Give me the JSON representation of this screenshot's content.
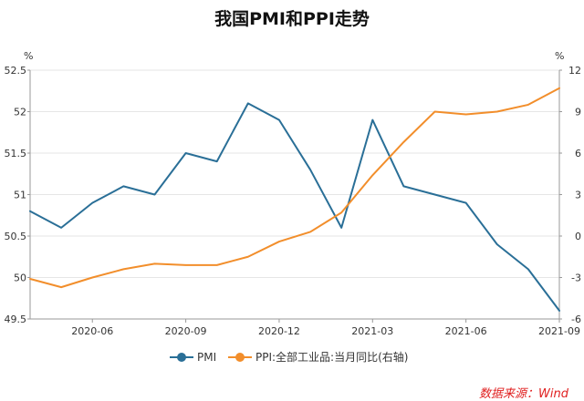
{
  "chart_data": {
    "type": "line",
    "title": "我国PMI和PPI走势",
    "source": "数据来源：Wind",
    "left_unit": "%",
    "right_unit": "%",
    "x_tick_labels": [
      "2020-06",
      "2020-09",
      "2020-12",
      "2021-03",
      "2021-06",
      "2021-09"
    ],
    "x": [
      "2020-04",
      "2020-05",
      "2020-06",
      "2020-07",
      "2020-08",
      "2020-09",
      "2020-10",
      "2020-11",
      "2020-12",
      "2021-01",
      "2021-02",
      "2021-03",
      "2021-04",
      "2021-05",
      "2021-06",
      "2021-07",
      "2021-08",
      "2021-09"
    ],
    "ylim_left": [
      49.5,
      52.5
    ],
    "yticks_left": [
      49.5,
      50,
      50.5,
      51,
      51.5,
      52,
      52.5
    ],
    "ylim_right": [
      -6,
      12
    ],
    "yticks_right": [
      -6,
      -3,
      0,
      3,
      6,
      9,
      12
    ],
    "series": [
      {
        "name": "PMI",
        "axis": "left",
        "color": "#2a6f97",
        "values": [
          50.8,
          50.6,
          50.9,
          51.1,
          51.0,
          51.5,
          51.4,
          52.1,
          51.9,
          51.3,
          50.6,
          51.9,
          51.1,
          51.0,
          50.9,
          50.4,
          50.1,
          49.6
        ]
      },
      {
        "name": "PPI:全部工业品:当月同比(右轴)",
        "axis": "right",
        "color": "#f28e2b",
        "values": [
          -3.1,
          -3.7,
          -3.0,
          -2.4,
          -2.0,
          -2.1,
          -2.1,
          -1.5,
          -0.4,
          0.3,
          1.7,
          4.4,
          6.8,
          9.0,
          8.8,
          9.0,
          9.5,
          10.7
        ]
      }
    ]
  }
}
